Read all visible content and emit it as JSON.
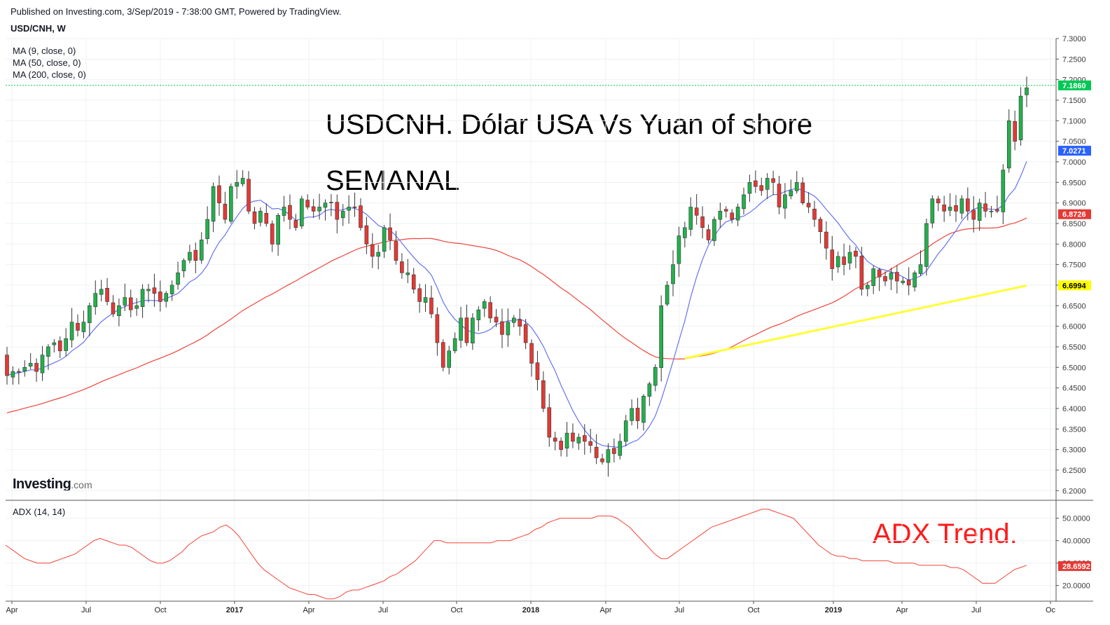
{
  "header": {
    "published": "Published on Investing.com, 3/Sep/2019 - 7:38:00 GMT, Powered by TradingView.",
    "symbol": "USD/CNH, W"
  },
  "legend": {
    "ma9": "MA (9, close, 0)",
    "ma50": "MA (50, close, 0)",
    "ma200": "MA (200, close, 0)",
    "adx": "ADX (14, 14)"
  },
  "annotations": {
    "title": "USDCNH. Dólar USA Vs Yuan of shore",
    "subtitle": "SEMANAL",
    "adx_note": "ADX Trend."
  },
  "logo": {
    "main": "Investing",
    "suffix": ".com"
  },
  "colors": {
    "up": "#22b14c",
    "down": "#e53935",
    "ma9": "#6674f0",
    "ma50": "#f0453a",
    "trend_line": "#ffff33",
    "adx": "#f44336",
    "grid": "#eef0f3",
    "axis_text": "#3b3b3b",
    "last_price": "#00c853",
    "ma9_label": "#2962ff",
    "ma50_label": "#e53935",
    "ma200_label": "#ffff00"
  },
  "chart_data": {
    "type": "candlestick",
    "price_axis": {
      "ylim": [
        6.18,
        7.3
      ],
      "ticks": [
        "7.3000",
        "7.2500",
        "7.2000",
        "7.1500",
        "7.1000",
        "7.0500",
        "7.0000",
        "6.9500",
        "6.9000",
        "6.8500",
        "6.8000",
        "6.7500",
        "6.7000",
        "6.6500",
        "6.6000",
        "6.5500",
        "6.5000",
        "6.4500",
        "6.4000",
        "6.3500",
        "6.3000",
        "6.2500",
        "6.2000"
      ]
    },
    "adx_axis": {
      "ylim": [
        13,
        58
      ],
      "ticks": [
        "50.0000",
        "40.0000",
        "30.0000",
        "20.0000"
      ]
    },
    "x_axis_labels": [
      "Apr",
      "Jul",
      "Oct",
      "2017",
      "Apr",
      "Jul",
      "Oct",
      "2018",
      "Apr",
      "Jul",
      "Oct",
      "2019",
      "Apr",
      "Jul",
      "Oc"
    ],
    "price_labels": {
      "last": "7.1860",
      "ma9": "7.0271",
      "ma50": "6.8726",
      "ma200": "6.6994",
      "adx": "28.6592"
    },
    "weekly_close": [
      6.48,
      6.49,
      6.49,
      6.5,
      6.51,
      6.49,
      6.53,
      6.55,
      6.56,
      6.54,
      6.57,
      6.61,
      6.59,
      6.61,
      6.65,
      6.68,
      6.69,
      6.66,
      6.63,
      6.65,
      6.67,
      6.64,
      6.65,
      6.69,
      6.69,
      6.68,
      6.66,
      6.68,
      6.7,
      6.73,
      6.76,
      6.78,
      6.76,
      6.81,
      6.86,
      6.94,
      6.9,
      6.86,
      6.94,
      6.95,
      6.96,
      6.88,
      6.85,
      6.88,
      6.85,
      6.8,
      6.87,
      6.89,
      6.86,
      6.84,
      6.91,
      6.89,
      6.88,
      6.89,
      6.9,
      6.9,
      6.86,
      6.88,
      6.89,
      6.89,
      6.84,
      6.8,
      6.77,
      6.78,
      6.84,
      6.81,
      6.76,
      6.73,
      6.73,
      6.69,
      6.66,
      6.67,
      6.63,
      6.56,
      6.5,
      6.54,
      6.57,
      6.62,
      6.56,
      6.62,
      6.64,
      6.66,
      6.62,
      6.61,
      6.58,
      6.61,
      6.62,
      6.6,
      6.56,
      6.51,
      6.47,
      6.4,
      6.33,
      6.32,
      6.3,
      6.34,
      6.32,
      6.33,
      6.32,
      6.31,
      6.28,
      6.27,
      6.3,
      6.29,
      6.32,
      6.37,
      6.4,
      6.37,
      6.43,
      6.46,
      6.5,
      6.65,
      6.7,
      6.75,
      6.82,
      6.84,
      6.89,
      6.87,
      6.84,
      6.81,
      6.86,
      6.88,
      6.88,
      6.86,
      6.89,
      6.92,
      6.95,
      6.94,
      6.93,
      6.96,
      6.95,
      6.89,
      6.92,
      6.93,
      6.95,
      6.9,
      6.89,
      6.86,
      6.83,
      6.79,
      6.74,
      6.77,
      6.75,
      6.78,
      6.77,
      6.69,
      6.7,
      6.74,
      6.72,
      6.71,
      6.73,
      6.71,
      6.71,
      6.7,
      6.73,
      6.75,
      6.85,
      6.91,
      6.9,
      6.88,
      6.89,
      6.88,
      6.91,
      6.88,
      6.86,
      6.9,
      6.88,
      6.88,
      6.88,
      6.98,
      7.1,
      7.05,
      7.16,
      7.18
    ],
    "series": [
      {
        "name": "MA (9, close, 0)",
        "values_note": "computed 9-week moving average of close"
      },
      {
        "name": "MA (50, close, 0)",
        "values_note": "computed 50-week moving average of close"
      },
      {
        "name": "ADX (14, 14)",
        "values": [
          38,
          36,
          34,
          32,
          31,
          30,
          30,
          30,
          31,
          32,
          33,
          34,
          36,
          38,
          40,
          41,
          40,
          39,
          38,
          38,
          37,
          35,
          33,
          31,
          30,
          30,
          31,
          33,
          35,
          38,
          40,
          42,
          43,
          44,
          46,
          47,
          45,
          42,
          38,
          34,
          30,
          27,
          25,
          23,
          21,
          19,
          18,
          17,
          16,
          16,
          15,
          14,
          14,
          15,
          17,
          18,
          18,
          19,
          20,
          21,
          22,
          24,
          25,
          27,
          29,
          31,
          34,
          37,
          40,
          40,
          39,
          39,
          39,
          39,
          39,
          39,
          39,
          39,
          40,
          40,
          40,
          41,
          42,
          43,
          45,
          46,
          48,
          49,
          50,
          50,
          50,
          50,
          50,
          50,
          51,
          51,
          51,
          50,
          48,
          46,
          43,
          40,
          37,
          34,
          32,
          32,
          34,
          36,
          38,
          40,
          42,
          44,
          46,
          47,
          48,
          49,
          50,
          51,
          52,
          53,
          54,
          54,
          53,
          52,
          51,
          50,
          47,
          44,
          41,
          38,
          36,
          34,
          33,
          33,
          32,
          32,
          31,
          31,
          31,
          31,
          31,
          30,
          30,
          30,
          30,
          29,
          29,
          29,
          29,
          29,
          28,
          28,
          27,
          25,
          23,
          21,
          21,
          21,
          23,
          25,
          27,
          28,
          29
        ]
      }
    ]
  }
}
